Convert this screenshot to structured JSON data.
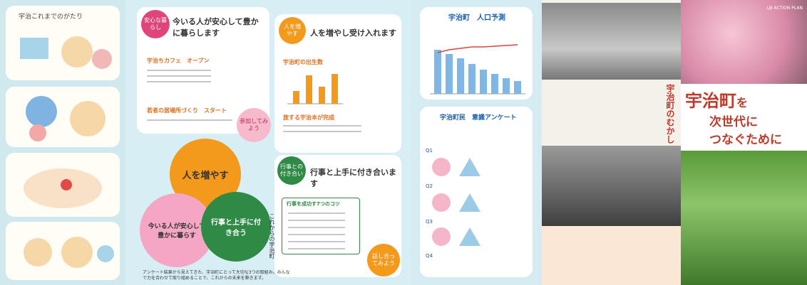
{
  "left_strip": {
    "title": "宇治これまでのがたり"
  },
  "middle": {
    "card1": {
      "badge": "安心な暮らし",
      "title": "今いる人が安心して豊かに暮らします",
      "items": [
        "宇治ちカフェ　オープン",
        "若者の居場所づくり　スタート"
      ],
      "bubble": "参加してみよう"
    },
    "card2": {
      "badge": "人を増やす",
      "title": "人を増やし受け入れます",
      "items": [
        "宇治町の出生数",
        "旅する宇治本が完成"
      ]
    },
    "diagram": {
      "circles": [
        "人を増やす",
        "今いる人が安心して豊かに暮らす",
        "行事と上手に付き合う"
      ]
    },
    "card3": {
      "badge": "行事との付き合い",
      "title": "行事と上手に付き合います",
      "subtitle": "行事を成功す7つのコツ",
      "bubble": "話し合ってみよう"
    },
    "side_label": "これからの宇治町",
    "footer": "アンケート結果から見えてきた、宇治町にとって大切な3つの取組み。みんなで力を合わせて取り組めることで、これからの未来を築きます。"
  },
  "right_page": {
    "population": {
      "title": "宇治町　人口予測"
    },
    "survey": {
      "title": "宇治町民　意識アンケート",
      "questions": [
        "Q1",
        "Q2",
        "Q3",
        "Q4"
      ]
    }
  },
  "history": {
    "title": "宇治町のむかし"
  },
  "cover": {
    "label": "UJI ACTION PLAN",
    "title": [
      "宇治町",
      "を",
      "次世代に",
      "つなぐために"
    ]
  }
}
